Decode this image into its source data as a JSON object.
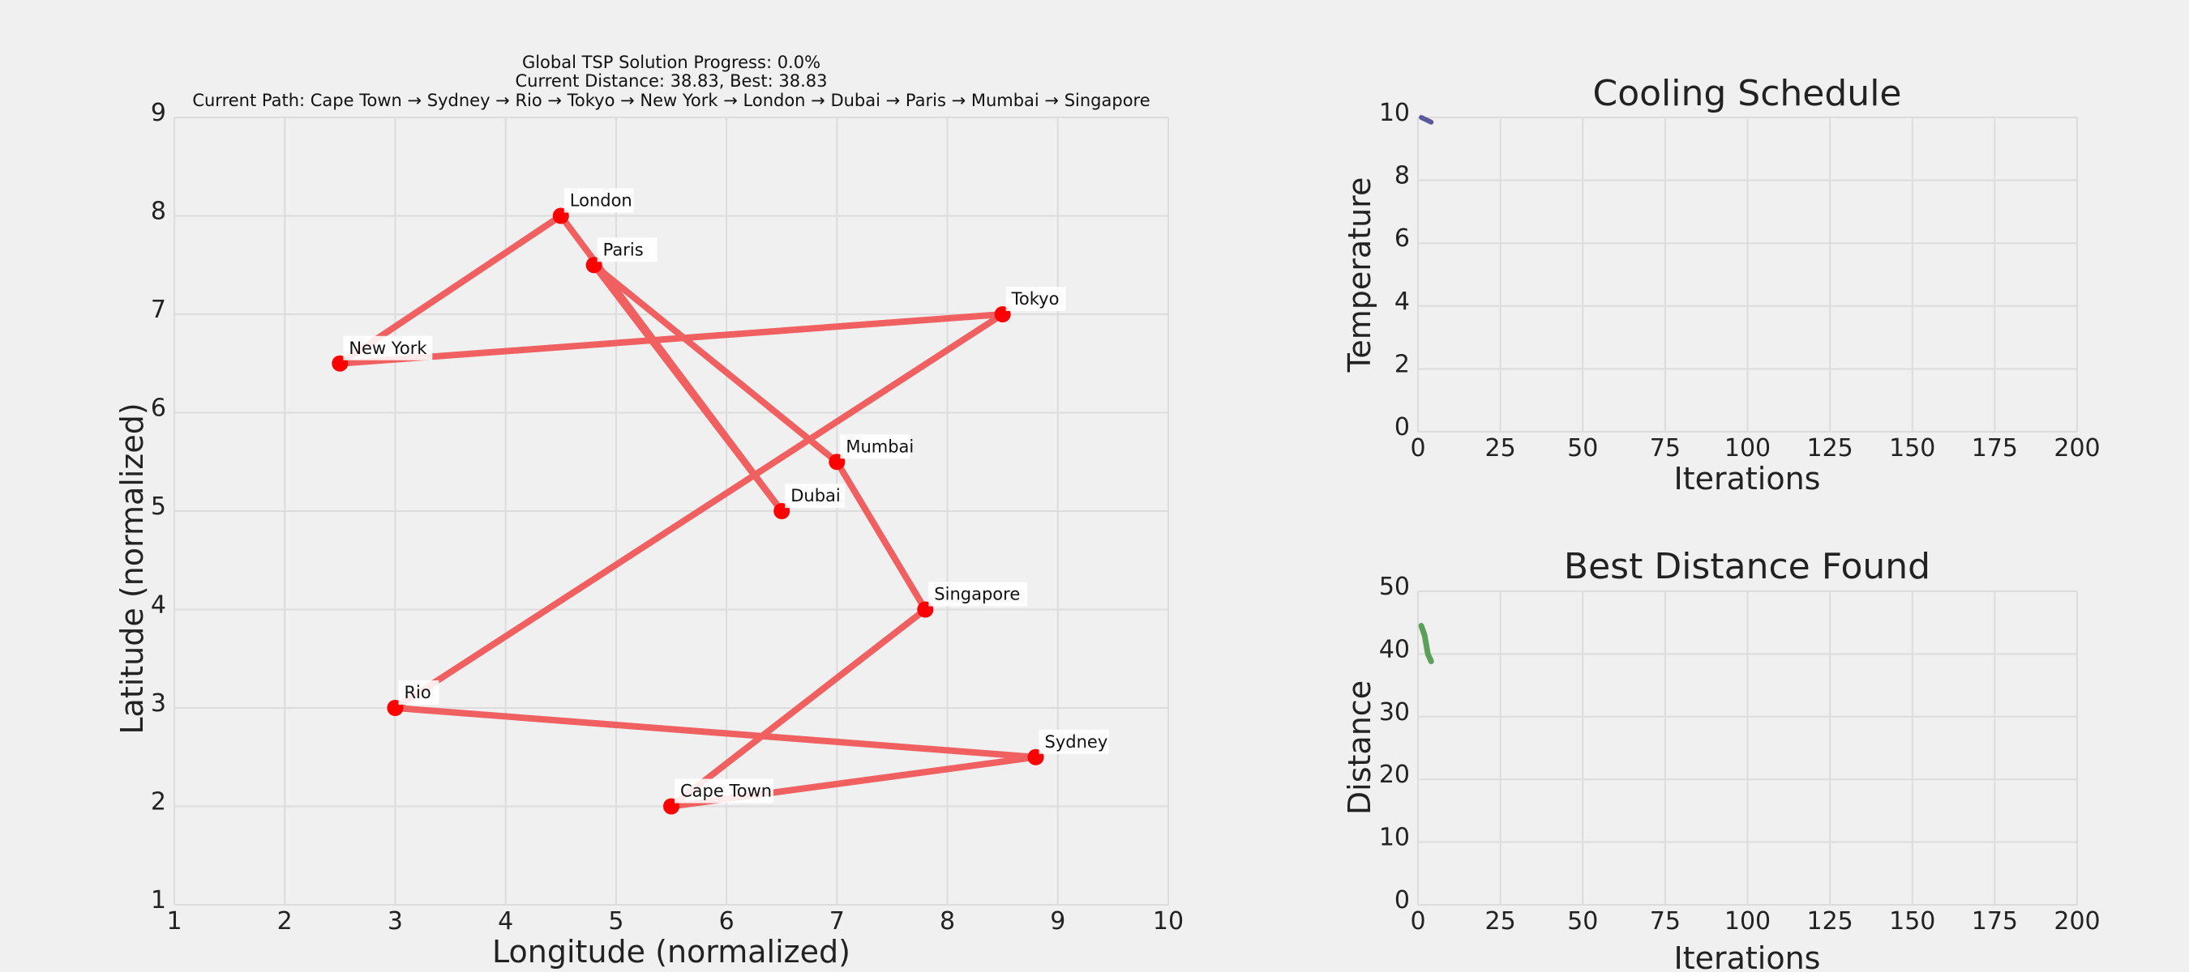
{
  "colors": {
    "background": "#f0f0f0",
    "route": "#f06060",
    "city": "#ff0000",
    "temperature_line": "#5a5a9a",
    "distance_line": "#5aa05a"
  },
  "chart_data": [
    {
      "type": "scatter",
      "title_lines": [
        "Global TSP Solution Progress: 0.0%",
        "Current Distance: 38.83, Best: 38.83",
        "Current Path: Cape Town → Sydney → Rio → Tokyo → New York → London → Dubai → Paris → Mumbai → Singapore"
      ],
      "xlabel": "Longitude (normalized)",
      "ylabel": "Latitude (normalized)",
      "xlim": [
        1,
        10
      ],
      "ylim": [
        1,
        9
      ],
      "xticks": [
        1,
        2,
        3,
        4,
        5,
        6,
        7,
        8,
        9,
        10
      ],
      "yticks": [
        1,
        2,
        3,
        4,
        5,
        6,
        7,
        8,
        9
      ],
      "grid": true,
      "cities": [
        {
          "name": "New York",
          "x": 2.5,
          "y": 6.5
        },
        {
          "name": "London",
          "x": 4.5,
          "y": 8.0
        },
        {
          "name": "Paris",
          "x": 4.8,
          "y": 7.5
        },
        {
          "name": "Tokyo",
          "x": 8.5,
          "y": 7.0
        },
        {
          "name": "Mumbai",
          "x": 7.0,
          "y": 5.5
        },
        {
          "name": "Dubai",
          "x": 6.5,
          "y": 5.0
        },
        {
          "name": "Singapore",
          "x": 7.8,
          "y": 4.0
        },
        {
          "name": "Rio",
          "x": 3.0,
          "y": 3.0
        },
        {
          "name": "Sydney",
          "x": 8.8,
          "y": 2.5
        },
        {
          "name": "Cape Town",
          "x": 5.5,
          "y": 2.0
        }
      ],
      "route": [
        "Cape Town",
        "Sydney",
        "Rio",
        "Tokyo",
        "New York",
        "London",
        "Dubai",
        "Paris",
        "Mumbai",
        "Singapore",
        "Cape Town"
      ]
    },
    {
      "type": "line",
      "title": "Cooling Schedule",
      "xlabel": "Iterations",
      "ylabel": "Temperature",
      "xlim": [
        0,
        200
      ],
      "ylim": [
        0,
        10
      ],
      "xticks": [
        0,
        25,
        50,
        75,
        100,
        125,
        150,
        175,
        200
      ],
      "yticks": [
        0,
        2,
        4,
        6,
        8,
        10
      ],
      "grid": true,
      "x": [
        1,
        2,
        3,
        4
      ],
      "y": [
        10.0,
        9.95,
        9.9,
        9.85
      ]
    },
    {
      "type": "line",
      "title": "Best Distance Found",
      "xlabel": "Iterations",
      "ylabel": "Distance",
      "xlim": [
        0,
        200
      ],
      "ylim": [
        0,
        50
      ],
      "xticks": [
        0,
        25,
        50,
        75,
        100,
        125,
        150,
        175,
        200
      ],
      "yticks": [
        0,
        10,
        20,
        30,
        40,
        50
      ],
      "grid": true,
      "x": [
        1,
        2,
        3,
        4
      ],
      "y": [
        44.5,
        43.0,
        40.0,
        38.83
      ]
    }
  ]
}
